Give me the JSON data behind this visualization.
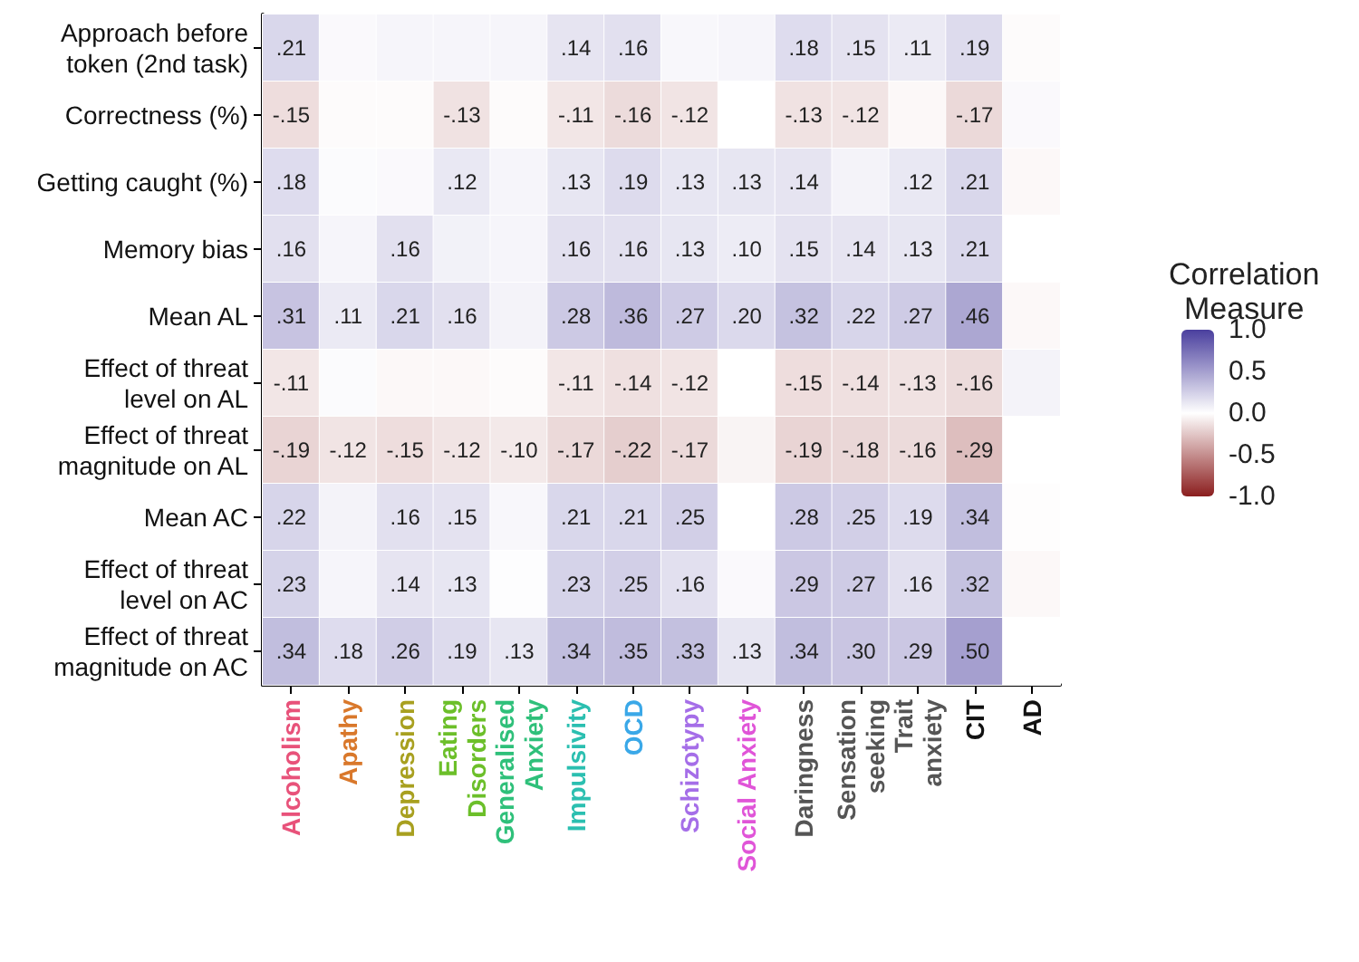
{
  "chart_data": {
    "type": "heatmap",
    "clabel": "Correlation\nMeasure",
    "categories": [
      "Alcoholism",
      "Apathy",
      "Depression",
      "Eating\nDisorders",
      "Generalised\nAnxiety",
      "Impulsivity",
      "OCD",
      "Schizotypy",
      "Social Anxiety",
      "Daringness",
      "Sensation\nseeking",
      "Trait\nanxiety",
      "CIT",
      "AD"
    ],
    "y_categories": [
      "Approach before\ntoken (2nd task)",
      "Correctness (%)",
      "Getting caught (%)",
      "Memory bias",
      "Mean AL",
      "Effect of threat\nlevel on AL",
      "Effect of threat\nmagnitude on AL",
      "Mean AC",
      "Effect of threat\nlevel on AC",
      "Effect of threat\nmagnitude on AC"
    ],
    "cells": [
      [
        0.21,
        0.03,
        0.05,
        0.05,
        0.05,
        0.14,
        0.16,
        0.04,
        0.05,
        0.18,
        0.15,
        0.11,
        0.19,
        -0.02
      ],
      [
        -0.15,
        -0.02,
        -0.02,
        -0.13,
        -0.02,
        -0.11,
        -0.16,
        -0.12,
        0.0,
        -0.13,
        -0.12,
        -0.03,
        -0.17,
        0.03
      ],
      [
        0.18,
        0.02,
        0.03,
        0.12,
        0.05,
        0.13,
        0.19,
        0.13,
        0.13,
        0.14,
        0.06,
        0.12,
        0.21,
        -0.03
      ],
      [
        0.16,
        0.05,
        0.16,
        0.07,
        0.05,
        0.16,
        0.16,
        0.13,
        0.1,
        0.15,
        0.14,
        0.13,
        0.21,
        0.0
      ],
      [
        0.31,
        0.11,
        0.21,
        0.16,
        0.06,
        0.28,
        0.36,
        0.27,
        0.2,
        0.32,
        0.22,
        0.27,
        0.46,
        -0.03
      ],
      [
        -0.11,
        0.02,
        -0.03,
        -0.03,
        -0.02,
        -0.11,
        -0.14,
        -0.12,
        0.0,
        -0.15,
        -0.14,
        -0.13,
        -0.16,
        0.06
      ],
      [
        -0.19,
        -0.12,
        -0.15,
        -0.12,
        -0.1,
        -0.17,
        -0.22,
        -0.17,
        -0.05,
        -0.19,
        -0.18,
        -0.16,
        -0.29,
        0.0
      ],
      [
        0.22,
        0.06,
        0.16,
        0.15,
        0.04,
        0.21,
        0.21,
        0.25,
        0.0,
        0.28,
        0.25,
        0.19,
        0.34,
        -0.01
      ],
      [
        0.23,
        0.05,
        0.14,
        0.13,
        0.01,
        0.23,
        0.25,
        0.16,
        0.03,
        0.29,
        0.27,
        0.16,
        0.32,
        -0.03
      ],
      [
        0.34,
        0.18,
        0.26,
        0.19,
        0.13,
        0.34,
        0.35,
        0.33,
        0.13,
        0.34,
        0.3,
        0.29,
        0.5,
        0.0
      ]
    ],
    "cell_labels": [
      [
        ".21",
        null,
        null,
        null,
        null,
        ".14",
        ".16",
        null,
        null,
        ".18",
        ".15",
        ".11",
        ".19",
        null
      ],
      [
        "-.15",
        null,
        null,
        "-.13",
        null,
        "-.11",
        "-.16",
        "-.12",
        null,
        "-.13",
        "-.12",
        null,
        "-.17",
        null
      ],
      [
        ".18",
        null,
        null,
        ".12",
        null,
        ".13",
        ".19",
        ".13",
        ".13",
        ".14",
        null,
        ".12",
        ".21",
        null
      ],
      [
        ".16",
        null,
        ".16",
        null,
        null,
        ".16",
        ".16",
        ".13",
        ".10",
        ".15",
        ".14",
        ".13",
        ".21",
        null
      ],
      [
        ".31",
        ".11",
        ".21",
        ".16",
        null,
        ".28",
        ".36",
        ".27",
        ".20",
        ".32",
        ".22",
        ".27",
        ".46",
        null
      ],
      [
        "-.11",
        null,
        null,
        null,
        null,
        "-.11",
        "-.14",
        "-.12",
        null,
        "-.15",
        "-.14",
        "-.13",
        "-.16",
        null
      ],
      [
        "-.19",
        "-.12",
        "-.15",
        "-.12",
        "-.10",
        "-.17",
        "-.22",
        "-.17",
        null,
        "-.19",
        "-.18",
        "-.16",
        "-.29",
        null
      ],
      [
        ".22",
        null,
        ".16",
        ".15",
        null,
        ".21",
        ".21",
        ".25",
        null,
        ".28",
        ".25",
        ".19",
        ".34",
        null
      ],
      [
        ".23",
        null,
        ".14",
        ".13",
        null,
        ".23",
        ".25",
        ".16",
        null,
        ".29",
        ".27",
        ".16",
        ".32",
        null
      ],
      [
        ".34",
        ".18",
        ".26",
        ".19",
        ".13",
        ".34",
        ".35",
        ".33",
        ".13",
        ".34",
        ".30",
        ".29",
        ".50",
        null
      ]
    ],
    "clim": [
      -1,
      1
    ],
    "cticks": [
      {
        "value": 1,
        "label": "1.0"
      },
      {
        "value": 0.5,
        "label": "0.5"
      },
      {
        "value": 0,
        "label": "0.0"
      },
      {
        "value": -0.5,
        "label": "-0.5"
      },
      {
        "value": -1,
        "label": "-1.0"
      }
    ]
  }
}
